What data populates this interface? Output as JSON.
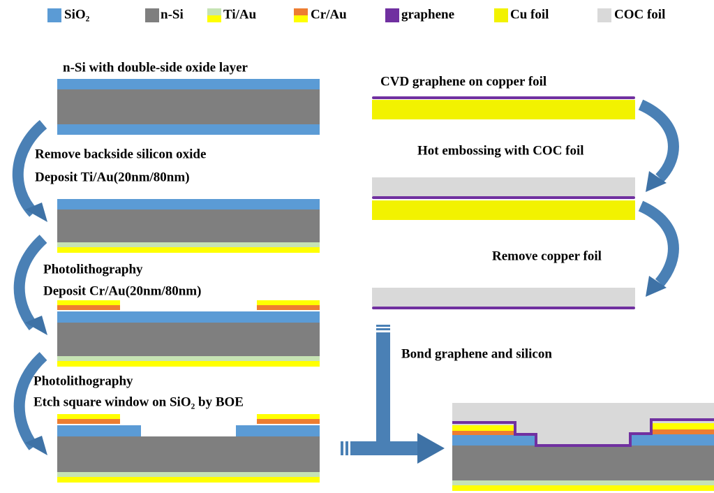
{
  "legend": [
    "SiO₂",
    "n-Si",
    "Ti/Au",
    "Cr/Au",
    "graphene",
    "Cu foil",
    "COC foil"
  ],
  "left_steps": [
    "n-Si with double-side oxide layer",
    "Remove backside silicon oxide",
    "Deposit Ti/Au(20nm/80nm)",
    "Photolithography",
    "Deposit Cr/Au(20nm/80nm)",
    "Photolithography",
    "Etch square window on SiO₂ by BOE"
  ],
  "right_steps": [
    "CVD graphene on copper foil",
    "Hot embossing with COC foil",
    "Remove copper foil",
    "Bond graphene and silicon"
  ]
}
